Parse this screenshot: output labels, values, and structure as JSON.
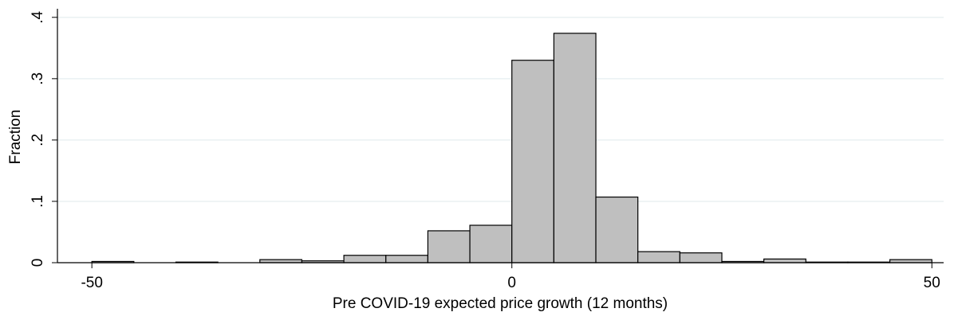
{
  "chart_data": {
    "type": "histogram",
    "xlabel": "Pre COVID-19 expected price growth (12 months)",
    "ylabel": "Fraction",
    "bins": [
      -50,
      -45,
      -40,
      -35,
      -30,
      -25,
      -20,
      -15,
      -10,
      -5,
      0,
      5,
      10,
      15,
      20,
      25,
      30,
      35,
      40,
      45,
      50
    ],
    "values": [
      0.002,
      0,
      0.001,
      0,
      0.005,
      0.003,
      0.012,
      0.012,
      0.052,
      0.061,
      0.33,
      0.374,
      0.107,
      0.018,
      0.016,
      0.002,
      0.006,
      0.001,
      0.001,
      0.005
    ],
    "color": "#bfbfbf",
    "xlim": [
      -54.1,
      51.4
    ],
    "xticks": [
      -50,
      0,
      50
    ],
    "ylim": [
      0,
      0.414
    ],
    "yticks": [
      0,
      {
        "value": 0.1,
        "label": ".1"
      },
      {
        "value": 0.2,
        "label": ".2"
      },
      {
        "value": 0.3,
        "label": ".3"
      },
      {
        "value": 0.4,
        "label": ".4"
      }
    ],
    "grid": true
  }
}
